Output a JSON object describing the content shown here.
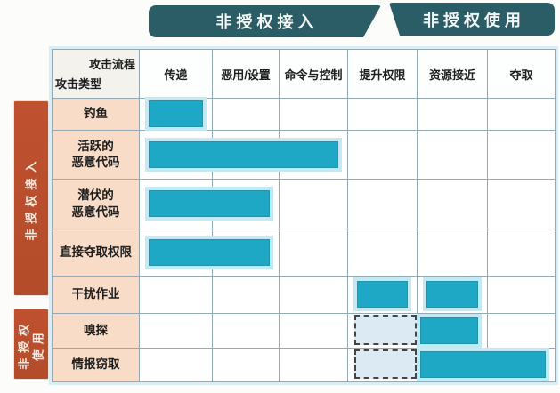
{
  "banners": [
    {
      "label": "非授权接入"
    },
    {
      "label": "非授权使用"
    }
  ],
  "sidebar": [
    {
      "label": "非授权接入",
      "lines": [
        "非授权接入"
      ]
    },
    {
      "label": "非授权使用",
      "lines": [
        "非授权",
        "使用"
      ]
    }
  ],
  "corner": {
    "top": "攻击流程",
    "bottom": "攻击类型"
  },
  "columns": [
    "传递",
    "恶用/设置",
    "命令与控制",
    "提升权限",
    "资源接近",
    "夺取"
  ],
  "rows": [
    {
      "label": "钓鱼",
      "lines": [
        "钓鱼"
      ],
      "bars": [
        {
          "type": "solid",
          "col_start": 0,
          "col_end": 0
        }
      ]
    },
    {
      "label": "活跃的恶意代码",
      "lines": [
        "活跃的",
        "恶意代码"
      ],
      "bars": [
        {
          "type": "solid",
          "col_start": 0,
          "col_end": 2
        }
      ]
    },
    {
      "label": "潜伏的恶意代码",
      "lines": [
        "潜伏的",
        "恶意代码"
      ],
      "bars": [
        {
          "type": "solid",
          "col_start": 0,
          "col_end": 1
        }
      ]
    },
    {
      "label": "直接夺取权限",
      "lines": [
        "直接夺取权限"
      ],
      "bars": [
        {
          "type": "solid",
          "col_start": 0,
          "col_end": 1
        }
      ]
    },
    {
      "label": "干扰作业",
      "lines": [
        "干扰作业"
      ],
      "bars": [
        {
          "type": "solid",
          "col_start": 3,
          "col_end": 3
        },
        {
          "type": "solid",
          "col_start": 4,
          "col_end": 4
        }
      ]
    },
    {
      "label": "嗅探",
      "lines": [
        "嗅探"
      ],
      "bars": [
        {
          "type": "dashed",
          "col_start": 3,
          "col_end": 3
        },
        {
          "type": "solid",
          "col_start": 4,
          "col_end": 4,
          "flush_left": true
        }
      ]
    },
    {
      "label": "情报窃取",
      "lines": [
        "情报窃取"
      ],
      "bars": [
        {
          "type": "dashed",
          "col_start": 3,
          "col_end": 3
        },
        {
          "type": "solid",
          "col_start": 4,
          "col_end": 5,
          "flush_left": true
        }
      ]
    }
  ],
  "colors": {
    "banner": "#2b5d66",
    "bar": "#1fa7c6",
    "bar_glow": "#c2e9f4",
    "dashed_fill": "#dcebf3",
    "sidebar": "#bf5130",
    "label_bg": "#f8dcc7",
    "grid_line": "#93a9b3"
  }
}
